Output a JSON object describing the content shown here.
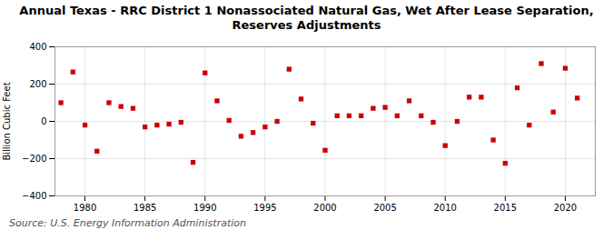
{
  "chart_data": {
    "type": "scatter",
    "title": "Annual Texas - RRC District 1 Nonassociated Natural Gas, Wet After Lease Separation,\nReserves Adjustments",
    "ylabel": "Billion Cubic Feet",
    "source": "Source: U.S. Energy Information Administration",
    "x": [
      1978,
      1979,
      1980,
      1981,
      1982,
      1983,
      1984,
      1985,
      1986,
      1987,
      1988,
      1989,
      1990,
      1991,
      1992,
      1993,
      1994,
      1995,
      1996,
      1997,
      1998,
      1999,
      2000,
      2001,
      2002,
      2003,
      2004,
      2005,
      2006,
      2007,
      2008,
      2009,
      2010,
      2011,
      2012,
      2013,
      2014,
      2015,
      2016,
      2017,
      2018,
      2019,
      2020,
      2021
    ],
    "values": [
      100,
      265,
      -20,
      -160,
      100,
      80,
      70,
      -30,
      -20,
      -15,
      -5,
      -220,
      260,
      110,
      5,
      -80,
      -60,
      -30,
      0,
      280,
      120,
      -10,
      -155,
      30,
      30,
      30,
      70,
      75,
      30,
      110,
      30,
      -5,
      -130,
      0,
      130,
      130,
      -100,
      -225,
      180,
      -20,
      310,
      50,
      285,
      125
    ],
    "color": "#cc0000",
    "marker": "square",
    "xlim": [
      1977.5,
      2022.5
    ],
    "ylim": [
      -400,
      400
    ],
    "xticks": [
      1980,
      1985,
      1990,
      1995,
      2000,
      2005,
      2010,
      2015,
      2020
    ],
    "yticks": [
      -400,
      -200,
      0,
      200,
      400
    ],
    "grid": true
  }
}
